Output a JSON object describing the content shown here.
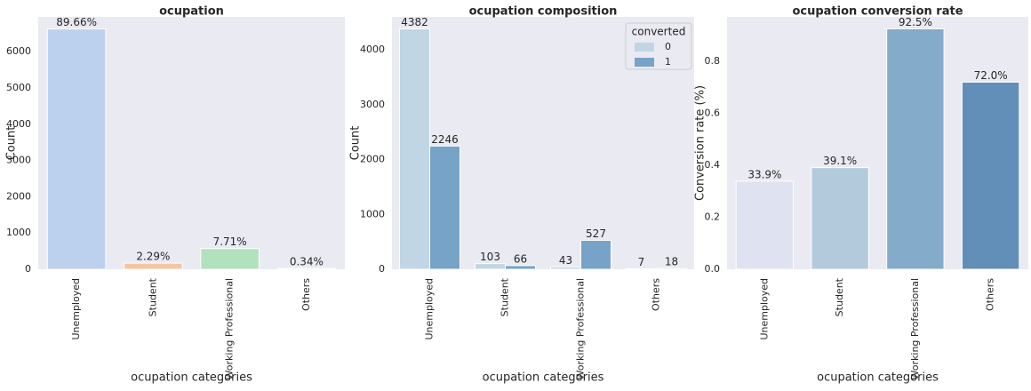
{
  "chart_data": [
    {
      "type": "bar",
      "title": "ocupation",
      "x_label": "ocupation categories",
      "y_label": "Count",
      "categories": [
        "Unemployed",
        "Student",
        "Working Professional",
        "Others"
      ],
      "values": [
        6628,
        169,
        570,
        25
      ],
      "colors": [
        "#bcd1ee",
        "#f4c6a4",
        "#b1e2bd",
        "#f2b9b9"
      ],
      "percentages": {
        "values": [
          89.66,
          2.29,
          7.71,
          0.34
        ],
        "value_labels": [
          "89.66%",
          "2.29%",
          "7.71%",
          "0.34%"
        ]
      },
      "ylim": [
        0,
        6960
      ],
      "yticks": [
        0,
        1000,
        2000,
        3000,
        4000,
        5000,
        6000
      ],
      "grid": false
    },
    {
      "type": "grouped_bar",
      "title": "ocupation composition",
      "x_label": "ocupation categories",
      "y_label": "Count",
      "categories": [
        "Unemployed",
        "Student",
        "Working Professional",
        "Others"
      ],
      "series": [
        {
          "name": "0",
          "color": "#c1d6e4",
          "values": [
            4382,
            103,
            43,
            7
          ]
        },
        {
          "name": "1",
          "color": "#76a3c7",
          "values": [
            2246,
            66,
            527,
            18
          ]
        }
      ],
      "legend": {
        "title": "converted",
        "position": "upper right"
      },
      "ylim": [
        0,
        4601
      ],
      "yticks": [
        0,
        1000,
        2000,
        3000,
        4000
      ],
      "grid": false
    },
    {
      "type": "bar",
      "title": "ocupation conversion rate",
      "x_label": "ocupation categories",
      "y_label": "Conversion rate (%)",
      "categories": [
        "Unemployed",
        "Student",
        "Working Professional",
        "Others"
      ],
      "values": [
        0.339,
        0.391,
        0.925,
        0.72
      ],
      "value_labels": [
        "33.9%",
        "39.1%",
        "92.5%",
        "72.0%"
      ],
      "colors": [
        "#dee2f1",
        "#b3cadd",
        "#84abc9",
        "#618fb7"
      ],
      "ylim": [
        0,
        0.971
      ],
      "yticks": [
        {
          "value": 0,
          "label": "0.0"
        },
        0.2,
        0.4,
        0.6,
        0.8
      ],
      "grid": false
    }
  ]
}
